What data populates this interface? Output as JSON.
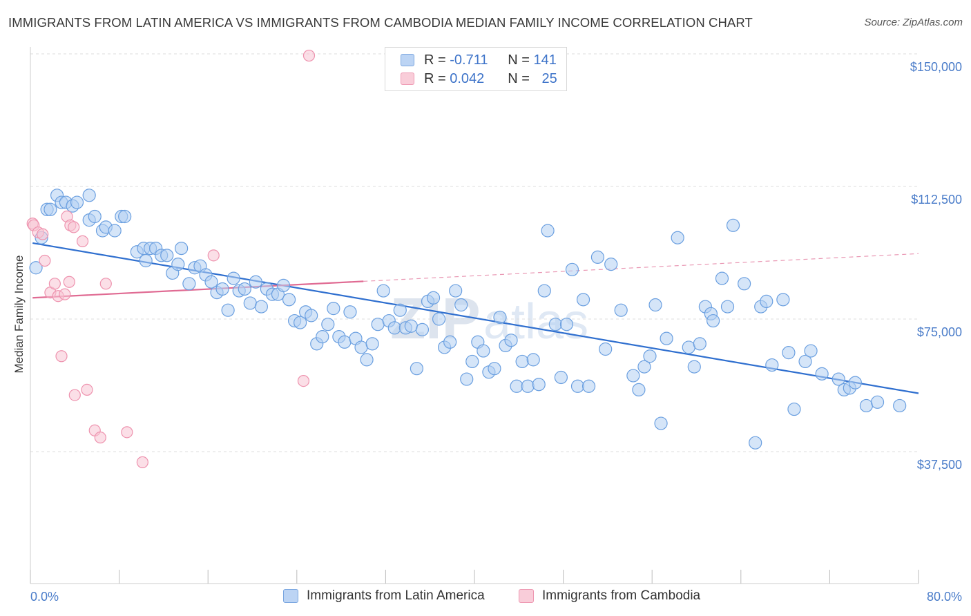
{
  "header": {
    "title": "IMMIGRANTS FROM LATIN AMERICA VS IMMIGRANTS FROM CAMBODIA MEDIAN FAMILY INCOME CORRELATION CHART",
    "source": "Source: ZipAtlas.com"
  },
  "legend": {
    "rows": [
      {
        "r_label": "R = ",
        "r_value": "-0.711",
        "n_label": "N = ",
        "n_value": "141",
        "color": "#a9c8f0"
      },
      {
        "r_label": "R = ",
        "r_value": "0.042",
        "n_label": "N = ",
        "n_value": "25",
        "color": "#f5b8cb"
      }
    ]
  },
  "watermark": {
    "zip": "ZIP",
    "atlas": "atlas"
  },
  "chart_data": {
    "type": "scatter",
    "title": "IMMIGRANTS FROM LATIN AMERICA VS IMMIGRANTS FROM CAMBODIA MEDIAN FAMILY INCOME CORRELATION CHART",
    "xlabel": "",
    "ylabel": "Median Family Income",
    "xlim": [
      0,
      80
    ],
    "ylim": [
      0,
      155000
    ],
    "x_tick_labels": [
      "0.0%",
      "80.0%"
    ],
    "y_ticks": [
      37500,
      75000,
      112500,
      150000
    ],
    "y_tick_labels": [
      "$37,500",
      "$75,000",
      "$112,500",
      "$150,000"
    ],
    "grid": true,
    "series": [
      {
        "name": "Immigrants from Latin America",
        "color": "#6a9fe0",
        "fill": "#b3cff3",
        "trend": {
          "x": [
            0.2,
            80
          ],
          "y": [
            96500,
            54000
          ],
          "color": "#2f6fcf"
        },
        "points": [
          [
            0.5,
            89500
          ],
          [
            1.0,
            98000
          ],
          [
            1.5,
            106000
          ],
          [
            1.8,
            106000
          ],
          [
            2.4,
            110000
          ],
          [
            2.8,
            108000
          ],
          [
            3.2,
            108000
          ],
          [
            3.8,
            107000
          ],
          [
            4.2,
            108000
          ],
          [
            5.3,
            110000
          ],
          [
            5.3,
            103000
          ],
          [
            5.8,
            104000
          ],
          [
            6.5,
            100000
          ],
          [
            6.8,
            101000
          ],
          [
            7.6,
            100000
          ],
          [
            8.2,
            104000
          ],
          [
            8.5,
            104000
          ],
          [
            9.6,
            94000
          ],
          [
            10.2,
            95000
          ],
          [
            10.4,
            91500
          ],
          [
            10.8,
            95000
          ],
          [
            11.3,
            95000
          ],
          [
            11.8,
            93000
          ],
          [
            12.3,
            93000
          ],
          [
            12.8,
            88000
          ],
          [
            13.3,
            90500
          ],
          [
            13.6,
            95000
          ],
          [
            14.3,
            85000
          ],
          [
            14.8,
            89500
          ],
          [
            15.3,
            90000
          ],
          [
            15.8,
            87500
          ],
          [
            16.3,
            85500
          ],
          [
            16.8,
            82500
          ],
          [
            17.3,
            83500
          ],
          [
            17.8,
            77500
          ],
          [
            18.3,
            86500
          ],
          [
            18.8,
            83000
          ],
          [
            19.3,
            83500
          ],
          [
            19.8,
            79500
          ],
          [
            20.3,
            85500
          ],
          [
            20.8,
            78500
          ],
          [
            21.3,
            83500
          ],
          [
            21.8,
            82000
          ],
          [
            22.3,
            82000
          ],
          [
            22.8,
            84500
          ],
          [
            23.3,
            80500
          ],
          [
            23.8,
            74500
          ],
          [
            24.3,
            74000
          ],
          [
            24.8,
            77000
          ],
          [
            25.3,
            76000
          ],
          [
            25.8,
            68000
          ],
          [
            26.3,
            70000
          ],
          [
            26.8,
            73500
          ],
          [
            27.3,
            78000
          ],
          [
            27.8,
            70000
          ],
          [
            28.3,
            68500
          ],
          [
            28.8,
            77000
          ],
          [
            29.3,
            69500
          ],
          [
            29.8,
            67000
          ],
          [
            30.3,
            63500
          ],
          [
            30.8,
            68000
          ],
          [
            31.3,
            73500
          ],
          [
            31.8,
            83000
          ],
          [
            32.3,
            74500
          ],
          [
            32.8,
            72500
          ],
          [
            33.3,
            77500
          ],
          [
            33.8,
            72500
          ],
          [
            34.3,
            73000
          ],
          [
            34.8,
            61000
          ],
          [
            35.3,
            72000
          ],
          [
            35.8,
            80000
          ],
          [
            36.3,
            81000
          ],
          [
            36.8,
            75000
          ],
          [
            37.3,
            67000
          ],
          [
            37.8,
            68500
          ],
          [
            38.3,
            83000
          ],
          [
            38.8,
            79000
          ],
          [
            39.3,
            58000
          ],
          [
            39.8,
            63000
          ],
          [
            40.3,
            68500
          ],
          [
            40.8,
            66000
          ],
          [
            41.3,
            60000
          ],
          [
            41.8,
            61000
          ],
          [
            42.3,
            75500
          ],
          [
            42.8,
            67500
          ],
          [
            43.3,
            69000
          ],
          [
            43.8,
            56000
          ],
          [
            44.3,
            63000
          ],
          [
            44.8,
            56000
          ],
          [
            45.3,
            63500
          ],
          [
            45.8,
            56500
          ],
          [
            46.3,
            83000
          ],
          [
            46.6,
            100000
          ],
          [
            47.3,
            73500
          ],
          [
            47.8,
            58500
          ],
          [
            48.3,
            73500
          ],
          [
            48.8,
            89000
          ],
          [
            49.3,
            56000
          ],
          [
            49.8,
            80500
          ],
          [
            50.3,
            56000
          ],
          [
            51.1,
            92500
          ],
          [
            51.8,
            66500
          ],
          [
            52.3,
            90500
          ],
          [
            53.2,
            77500
          ],
          [
            54.3,
            59000
          ],
          [
            54.8,
            55000
          ],
          [
            55.3,
            61500
          ],
          [
            55.8,
            64500
          ],
          [
            56.3,
            79000
          ],
          [
            56.8,
            45500
          ],
          [
            57.3,
            69500
          ],
          [
            58.3,
            98000
          ],
          [
            59.3,
            67000
          ],
          [
            59.8,
            61500
          ],
          [
            60.3,
            68000
          ],
          [
            60.8,
            78500
          ],
          [
            61.3,
            76500
          ],
          [
            61.5,
            74500
          ],
          [
            62.3,
            86500
          ],
          [
            62.8,
            78500
          ],
          [
            63.3,
            101500
          ],
          [
            64.3,
            85000
          ],
          [
            65.3,
            40000
          ],
          [
            65.8,
            78500
          ],
          [
            66.3,
            80000
          ],
          [
            66.8,
            62000
          ],
          [
            67.8,
            80500
          ],
          [
            68.3,
            65500
          ],
          [
            68.8,
            49500
          ],
          [
            69.8,
            63000
          ],
          [
            70.3,
            66000
          ],
          [
            71.3,
            59500
          ],
          [
            72.8,
            58000
          ],
          [
            73.3,
            55000
          ],
          [
            73.8,
            55500
          ],
          [
            74.3,
            57000
          ],
          [
            75.3,
            50500
          ],
          [
            76.3,
            51500
          ],
          [
            78.3,
            50500
          ]
        ]
      },
      {
        "name": "Immigrants from Cambodia",
        "color": "#ee92ae",
        "fill": "#f8c4d3",
        "trend": {
          "x": [
            0.2,
            80
          ],
          "y": [
            81000,
            93500
          ],
          "solid_until": 30,
          "color": "#e06b93"
        },
        "points": [
          [
            0.2,
            102000
          ],
          [
            0.3,
            101500
          ],
          [
            0.7,
            99500
          ],
          [
            1.1,
            99000
          ],
          [
            1.3,
            91500
          ],
          [
            1.8,
            82500
          ],
          [
            2.2,
            85000
          ],
          [
            2.5,
            81500
          ],
          [
            2.8,
            64500
          ],
          [
            3.1,
            82000
          ],
          [
            3.3,
            104000
          ],
          [
            3.5,
            85500
          ],
          [
            3.6,
            101500
          ],
          [
            3.9,
            101000
          ],
          [
            4.0,
            53500
          ],
          [
            4.7,
            97000
          ],
          [
            5.1,
            55000
          ],
          [
            5.8,
            43500
          ],
          [
            6.3,
            41500
          ],
          [
            6.8,
            85000
          ],
          [
            8.7,
            43000
          ],
          [
            10.1,
            34500
          ],
          [
            16.5,
            93000
          ],
          [
            24.6,
            57500
          ],
          [
            25.1,
            149500
          ]
        ]
      }
    ]
  },
  "bottom_legend": {
    "items": [
      {
        "label": "Immigrants from Latin America"
      },
      {
        "label": "Immigrants from Cambodia"
      }
    ]
  }
}
